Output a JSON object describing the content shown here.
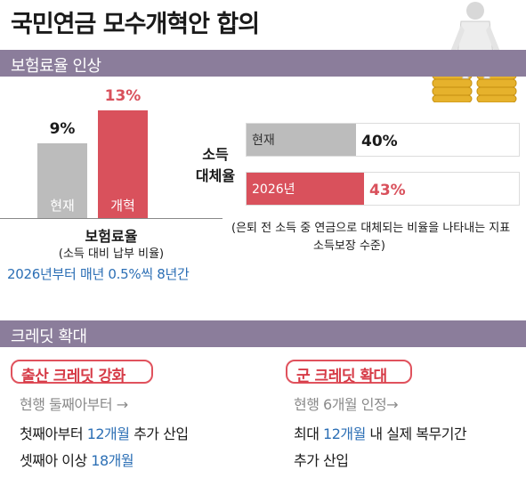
{
  "title": "국민연금 모수개혁안 합의",
  "section1": {
    "label": "보험료율 인상"
  },
  "section2": {
    "label": "크레딧 확대"
  },
  "colors": {
    "accent_red": "#d9515c",
    "bar_gray": "#bcbcbc",
    "band_purple": "#8b7d9b",
    "blue": "#2c6fb5",
    "coin_gold": "#e6b22c"
  },
  "chart_data": [
    {
      "type": "bar",
      "categories": [
        "현재",
        "개혁"
      ],
      "values": [
        9,
        13
      ],
      "value_labels": [
        "9%",
        "13%"
      ],
      "xlabel": "보험료율",
      "subtitle": "(소득 대비 납부 비율)",
      "note": "2026년부터 매년 0.5%씩 8년간"
    },
    {
      "type": "bar",
      "orientation": "horizontal",
      "title": "소득 대체율",
      "categories": [
        "현재",
        "2026년"
      ],
      "values": [
        40,
        43
      ],
      "value_labels": [
        "40%",
        "43%"
      ],
      "note_lines": [
        "(은퇴 전 소득 중 연금으로 대체되는 비율을 나타내는 지표",
        "소득보장 수준)"
      ]
    }
  ],
  "credit": {
    "birth": {
      "heading": "출산 크레딧 강화",
      "line1": "현행 둘째아부터 →",
      "line2_a": "첫째아부터 ",
      "line2_b": "12개월",
      "line2_c": " 추가 산입",
      "line3_a": "셋째아 이상 ",
      "line3_b": "18개월"
    },
    "military": {
      "heading": "군 크레딧 확대",
      "line1": "현행 6개월 인정→",
      "line2_a": "최대 ",
      "line2_b": "12개월",
      "line2_c": " 내 실제 복무기간",
      "line3": "추가 산입"
    }
  }
}
